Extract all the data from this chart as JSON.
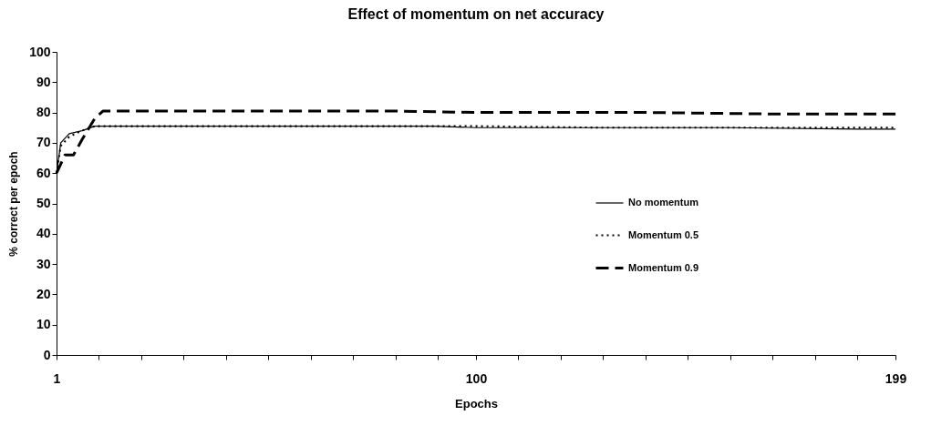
{
  "chart_data": {
    "type": "line",
    "title": "Effect of momentum on net accuracy",
    "xlabel": "Epochs",
    "ylabel": "% correct per epoch",
    "xlim": [
      1,
      199
    ],
    "xticks": [
      1,
      {
        "value": 11,
        "label": null
      },
      {
        "value": 21,
        "label": null
      },
      {
        "value": 31,
        "label": null
      },
      {
        "value": 41,
        "label": null
      },
      {
        "value": 51,
        "label": null
      },
      {
        "value": 61,
        "label": null
      },
      {
        "value": 71,
        "label": null
      },
      {
        "value": 81,
        "label": null
      },
      {
        "value": 91,
        "label": null
      },
      100,
      {
        "value": 110,
        "label": null
      },
      {
        "value": 120,
        "label": null
      },
      {
        "value": 130,
        "label": null
      },
      {
        "value": 140,
        "label": null
      },
      {
        "value": 150,
        "label": null
      },
      {
        "value": 160,
        "label": null
      },
      {
        "value": 170,
        "label": null
      },
      {
        "value": 180,
        "label": null
      },
      {
        "value": 190,
        "label": null
      },
      199
    ],
    "ylim": [
      0,
      100
    ],
    "yticks": [
      0,
      10,
      20,
      30,
      40,
      50,
      60,
      70,
      80,
      90,
      100
    ],
    "grid": false,
    "legend": "right",
    "marker": "none",
    "series": [
      {
        "name": "No momentum",
        "color": "#000000",
        "line_style": "solid",
        "x": [
          1,
          2,
          4,
          7,
          10,
          30,
          60,
          90,
          100,
          130,
          160,
          190,
          199
        ],
        "values": [
          60,
          70,
          73,
          74,
          75.5,
          75.5,
          75.5,
          75.5,
          75,
          75,
          75,
          74.5,
          74.5
        ]
      },
      {
        "name": "Momentum 0.5",
        "color": "#000000",
        "line_style": "dotted",
        "x": [
          1,
          2,
          4,
          7,
          10,
          30,
          60,
          90,
          100,
          130,
          160,
          190,
          199
        ],
        "values": [
          60,
          69,
          72,
          74,
          75.5,
          75.5,
          75.5,
          75.5,
          75.5,
          75,
          75,
          75,
          75
        ]
      },
      {
        "name": "Momentum 0.9",
        "color": "#000000",
        "line_style": "dashed",
        "x": [
          1,
          3,
          5,
          7,
          10,
          12,
          40,
          80,
          100,
          140,
          170,
          199
        ],
        "values": [
          60,
          66,
          66,
          71,
          78,
          80.5,
          80.5,
          80.5,
          80,
          80,
          79.5,
          79.5
        ]
      }
    ]
  }
}
